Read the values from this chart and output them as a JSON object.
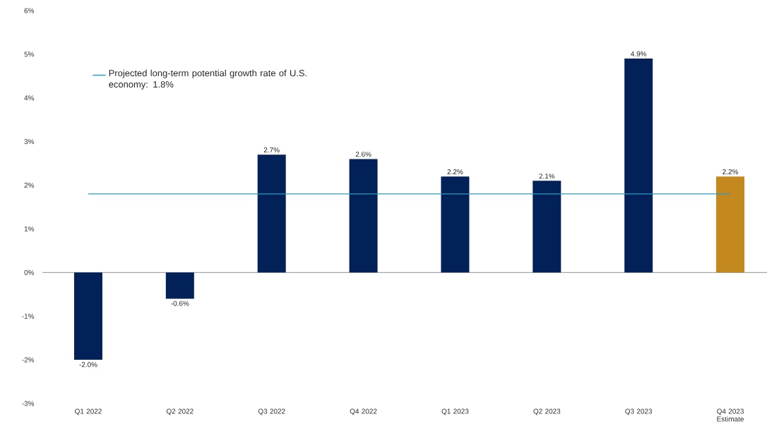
{
  "chart_data": {
    "type": "bar",
    "categories": [
      "Q1 2022",
      "Q2 2022",
      "Q3 2022",
      "Q4 2022",
      "Q1 2023",
      "Q2 2023",
      "Q3 2023",
      "Q4 2023 Estimate"
    ],
    "values": [
      -2.0,
      -0.6,
      2.7,
      2.6,
      2.2,
      2.1,
      4.9,
      2.2
    ],
    "colors": [
      "#032159",
      "#032159",
      "#032159",
      "#032159",
      "#032159",
      "#032159",
      "#032159",
      "#c4891e"
    ],
    "value_labels": [
      "-2.0%",
      "-0.6%",
      "2.7%",
      "2.6%",
      "2.2%",
      "2.1%",
      "4.9%",
      "2.2%"
    ],
    "ylim": [
      -3,
      6
    ],
    "yticks": [
      {
        "value": -3,
        "label": "-3%"
      },
      {
        "value": -2,
        "label": "-2%"
      },
      {
        "value": -1,
        "label": "-1%"
      },
      {
        "value": 0,
        "label": "0%"
      },
      {
        "value": 1,
        "label": "1%"
      },
      {
        "value": 2,
        "label": "2%"
      },
      {
        "value": 3,
        "label": "3%"
      },
      {
        "value": 4,
        "label": "4%"
      },
      {
        "value": 5,
        "label": "5%"
      },
      {
        "value": 6,
        "label": "6%"
      }
    ],
    "ref_lines": [
      {
        "axis": "y",
        "value": 1.8,
        "label": "Projected long-term potential growth rate of U.S. economy: 1.8%",
        "color": "#2a9bc4"
      }
    ]
  }
}
